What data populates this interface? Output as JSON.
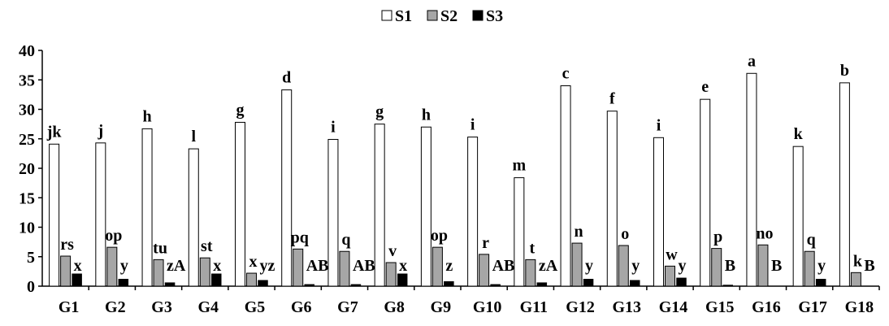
{
  "chart_data": {
    "type": "bar",
    "title": "",
    "xlabel": "",
    "ylabel": "",
    "ylim": [
      0,
      40
    ],
    "yticks": [
      "0",
      "5",
      "10",
      "15",
      "20",
      "25",
      "30",
      "35",
      "40"
    ],
    "grid": false,
    "legend_position": "top-center",
    "categories": [
      "G1",
      "G2",
      "G3",
      "G4",
      "G5",
      "G6",
      "G7",
      "G8",
      "G9",
      "G10",
      "G11",
      "G12",
      "G13",
      "G14",
      "G15",
      "G16",
      "G17",
      "G18"
    ],
    "series": [
      {
        "name": "S1",
        "color": "#ffffff",
        "values": [
          24.1,
          24.3,
          26.7,
          23.3,
          27.8,
          33.3,
          24.9,
          27.5,
          27.0,
          25.3,
          18.4,
          34.0,
          29.7,
          25.2,
          31.7,
          36.1,
          23.7,
          34.5
        ],
        "labels": [
          "jk",
          "j",
          "h",
          "l",
          "g",
          "d",
          "i",
          "g",
          "h",
          "i",
          "m",
          "c",
          "f",
          "i",
          "e",
          "a",
          "k",
          "b"
        ]
      },
      {
        "name": "S2",
        "color": "#a6a6a6",
        "values": [
          5.1,
          6.6,
          4.5,
          4.8,
          2.2,
          6.3,
          5.9,
          4.0,
          6.6,
          5.4,
          4.5,
          7.3,
          6.9,
          3.4,
          6.4,
          7.0,
          5.9,
          2.3
        ],
        "labels": [
          "rs",
          "op",
          "tu",
          "st",
          "x",
          "pq",
          "q",
          "v",
          "op",
          "r",
          "t",
          "n",
          "o",
          "w",
          "p",
          "no",
          "q",
          "k"
        ]
      },
      {
        "name": "S3",
        "color": "#000000",
        "values": [
          2.1,
          1.2,
          0.6,
          2.1,
          1.0,
          0.3,
          0.3,
          2.1,
          0.8,
          0.3,
          0.6,
          1.2,
          1.0,
          1.4,
          0.2,
          0.0,
          1.2,
          0.0
        ],
        "labels": [
          "x",
          "y",
          "zA",
          "x",
          "yz",
          "AB",
          "AB",
          "x",
          "z",
          "AB",
          "zA",
          "y",
          "y",
          "y",
          "B",
          "B",
          "y",
          "B"
        ]
      }
    ]
  }
}
